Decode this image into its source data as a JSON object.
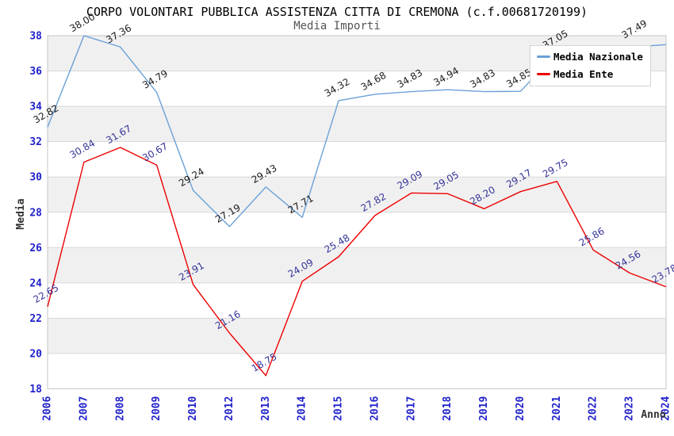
{
  "chart_data": {
    "type": "line",
    "title": "CORPO VOLONTARI PUBBLICA ASSISTENZA CITTA DI CREMONA (c.f.00681720199)",
    "subtitle": "Media Importi",
    "xlabel": "Anno",
    "ylabel": "Media",
    "ylim": [
      18,
      38
    ],
    "ytick_step": 2,
    "ytick_labels": [
      "18",
      "20",
      "22",
      "24",
      "26",
      "28",
      "30",
      "32",
      "34",
      "36",
      "38"
    ],
    "grid": true,
    "legend_position": "top-right",
    "categories": [
      "2006",
      "2007",
      "2008",
      "2009",
      "2010",
      "2012",
      "2013",
      "2014",
      "2015",
      "2016",
      "2017",
      "2018",
      "2019",
      "2020",
      "2021",
      "2022",
      "2023",
      "2024"
    ],
    "series": [
      {
        "name": "Media Nazionale",
        "color": "#6aa0d8",
        "label_color": "#1a1a1a",
        "values": [
          32.82,
          38.0,
          37.36,
          34.79,
          29.24,
          27.19,
          29.43,
          27.71,
          34.32,
          34.68,
          34.83,
          34.94,
          34.83,
          34.85,
          37.05,
          null,
          null,
          37.49
        ]
      },
      {
        "name": "Media Ente",
        "color": "#ee0000",
        "label_color": "#333399",
        "values": [
          22.65,
          30.84,
          31.67,
          30.67,
          23.91,
          21.16,
          18.75,
          24.09,
          25.48,
          27.82,
          29.09,
          29.05,
          28.2,
          29.17,
          29.75,
          25.86,
          24.56,
          23.78
        ]
      }
    ],
    "colors": {
      "band": "#f0f0f0",
      "grid": "#d8d8d8",
      "border": "#c6c6c6",
      "axis_ticks": "#2222cc",
      "axis_titles": "#333333"
    }
  }
}
